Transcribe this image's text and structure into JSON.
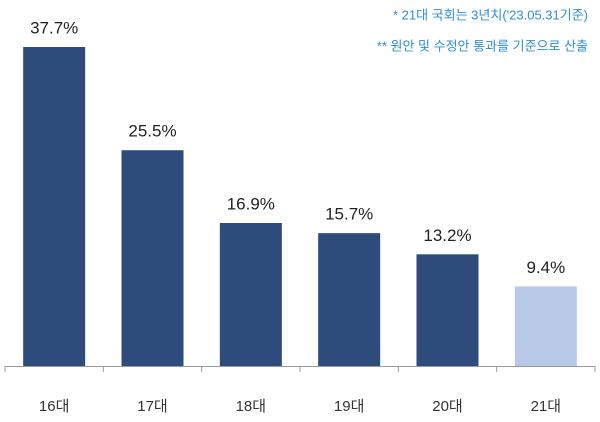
{
  "chart_data": {
    "type": "bar",
    "annotations": [
      "* 21대 국회는 3년치('23.05.31기준)",
      "** 원안 및 수정안 통과를 기준으로 산출"
    ],
    "categories": [
      "16대",
      "17대",
      "18대",
      "19대",
      "20대",
      "21대"
    ],
    "values": [
      37.7,
      25.5,
      16.9,
      15.7,
      13.2,
      9.4
    ],
    "value_labels": [
      "37.7%",
      "25.5%",
      "16.9%",
      "15.7%",
      "13.2%",
      "9.4%"
    ],
    "colors": [
      "#2d4b7b",
      "#2d4b7b",
      "#2d4b7b",
      "#2d4b7b",
      "#2d4b7b",
      "#b7c9e6"
    ]
  }
}
